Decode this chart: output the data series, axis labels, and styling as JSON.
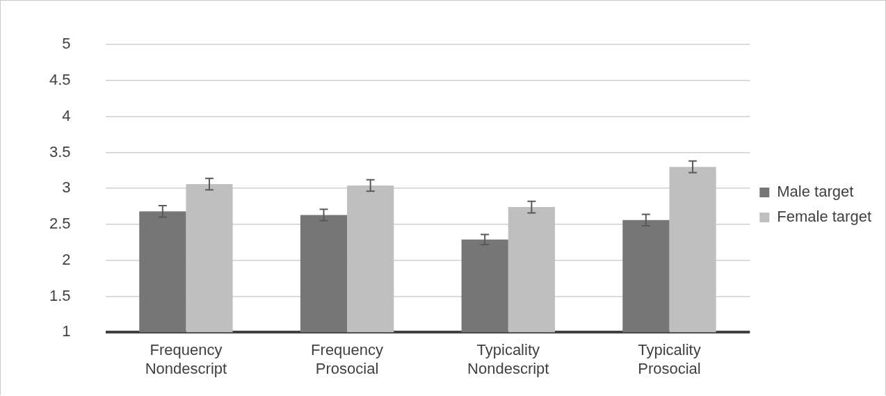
{
  "chart_data": {
    "type": "bar",
    "categories": [
      "Frequency Nondescript",
      "Frequency Prosocial",
      "Typicality Nondescript",
      "Typicality Prosocial"
    ],
    "series": [
      {
        "name": "Male target",
        "color": "#767676",
        "values": [
          2.68,
          2.63,
          2.29,
          2.56
        ],
        "errors": [
          0.08,
          0.08,
          0.07,
          0.08
        ]
      },
      {
        "name": "Female target",
        "color": "#bfbfbf",
        "values": [
          3.06,
          3.04,
          2.74,
          3.3
        ],
        "errors": [
          0.08,
          0.08,
          0.08,
          0.08
        ]
      }
    ],
    "ylim": [
      1,
      5
    ],
    "yticks": [
      1,
      1.5,
      2,
      2.5,
      3,
      3.5,
      4,
      4.5,
      5
    ],
    "grid": "y",
    "legend": "right"
  }
}
